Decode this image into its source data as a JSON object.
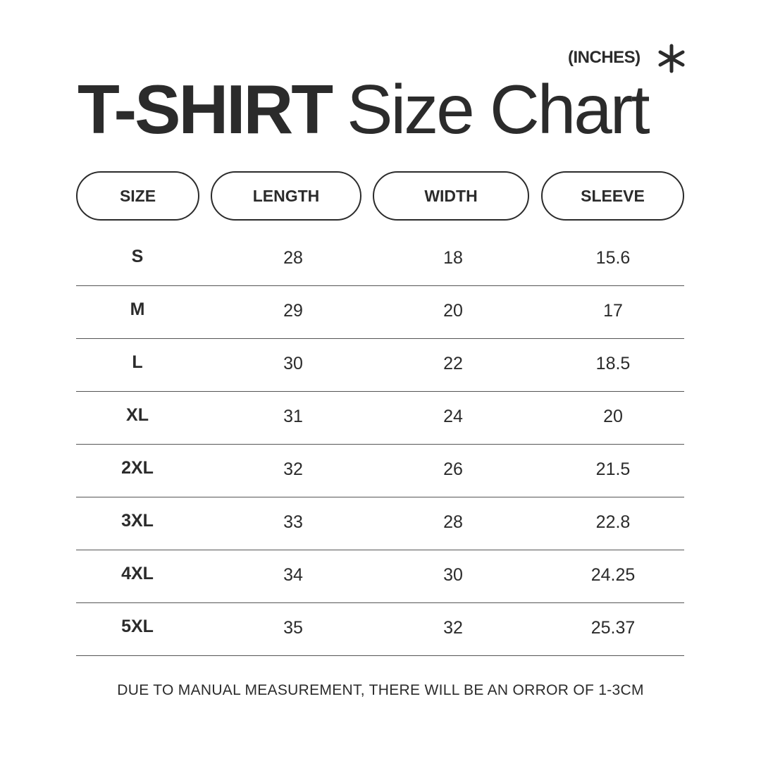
{
  "header": {
    "units": "(INCHES)",
    "title_bold": "T-SHIRT",
    "title_light": "Size Chart"
  },
  "columns": [
    "SIZE",
    "LENGTH",
    "WIDTH",
    "SLEEVE"
  ],
  "rows": [
    [
      "S",
      "28",
      "18",
      "15.6"
    ],
    [
      "M",
      "29",
      "20",
      "17"
    ],
    [
      "L",
      "30",
      "22",
      "18.5"
    ],
    [
      "XL",
      "31",
      "24",
      "20"
    ],
    [
      "2XL",
      "32",
      "26",
      "21.5"
    ],
    [
      "3XL",
      "33",
      "28",
      "22.8"
    ],
    [
      "4XL",
      "34",
      "30",
      "24.25"
    ],
    [
      "5XL",
      "35",
      "32",
      "25.37"
    ]
  ],
  "footer": "DUE TO MANUAL MEASUREMENT, THERE WILL BE AN ORROR OF 1-3CM",
  "colors": {
    "text": "#2b2b2b",
    "background": "#ffffff"
  }
}
